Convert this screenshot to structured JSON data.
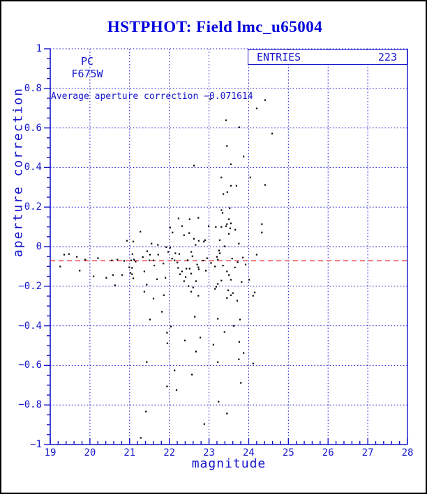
{
  "title": "HSTPHOT: Field lmc_u65004",
  "colors": {
    "title_blue": "#0000dd",
    "plot_blue": "#1414cc",
    "marker_black": "#000000",
    "average_line_red": "#ee2c2c",
    "outer_border_black": "#000000",
    "background": "#ffffff"
  },
  "annotations": {
    "camera": "PC",
    "filter": "F675W",
    "average_text": "Average aperture correction −0.071614"
  },
  "entries_box": {
    "label": "ENTRIES",
    "value": "223"
  },
  "chart_data": {
    "type": "scatter",
    "title": "HSTPHOT: Field lmc_u65004",
    "xlabel": "magnitude",
    "ylabel": "aperture correction",
    "xlim": [
      19,
      28
    ],
    "ylim": [
      -1,
      1
    ],
    "x_tick_labels": [
      "19",
      "20",
      "21",
      "22",
      "23",
      "24",
      "25",
      "26",
      "27",
      "28"
    ],
    "y_tick_labels": [
      "1",
      "0.8",
      "0.6",
      "0.4",
      "0.2",
      "0",
      "−0.2",
      "−0.4",
      "−0.6",
      "−0.8",
      "−1"
    ],
    "x_major_step": 1,
    "x_minor_step": 0.2,
    "y_major_step": 0.2,
    "y_minor_step": 0.05,
    "grid": "dotted blue lines at every major tick, full plot box",
    "legend_position": "none",
    "entries": 223,
    "average_aperture_correction": -0.071614,
    "average_line_y": -0.071614,
    "points": [
      [
        23.03,
        0.745
      ],
      [
        24.41,
        0.741
      ],
      [
        24.2,
        0.699
      ],
      [
        23.43,
        0.639
      ],
      [
        23.76,
        0.604
      ],
      [
        24.59,
        0.572
      ],
      [
        23.45,
        0.509
      ],
      [
        23.87,
        0.456
      ],
      [
        22.62,
        0.41
      ],
      [
        23.55,
        0.417
      ],
      [
        23.31,
        0.35
      ],
      [
        24.04,
        0.35
      ],
      [
        23.55,
        0.308
      ],
      [
        23.69,
        0.308
      ],
      [
        24.41,
        0.312
      ],
      [
        23.46,
        0.276
      ],
      [
        23.36,
        0.266
      ],
      [
        23.52,
        0.195
      ],
      [
        23.31,
        0.185
      ],
      [
        23.34,
        0.171
      ],
      [
        22.23,
        0.143
      ],
      [
        22.51,
        0.139
      ],
      [
        22.73,
        0.146
      ],
      [
        23.5,
        0.139
      ],
      [
        21.27,
        0.076
      ],
      [
        22.02,
        0.097
      ],
      [
        22.08,
        0.072
      ],
      [
        20.93,
        0.03
      ],
      [
        21.09,
        0.026
      ],
      [
        21.55,
        0.016
      ],
      [
        21.71,
        0.009
      ],
      [
        21.92,
        -0.002
      ],
      [
        22.02,
        -0.005
      ],
      [
        21.44,
        -0.023
      ],
      [
        21.51,
        -0.04
      ],
      [
        21.07,
        -0.037
      ],
      [
        22.15,
        -0.033
      ],
      [
        19.35,
        -0.04
      ],
      [
        19.47,
        -0.037
      ],
      [
        19.67,
        -0.051
      ],
      [
        19.88,
        -0.065
      ],
      [
        20.2,
        -0.058
      ],
      [
        20.55,
        -0.069
      ],
      [
        20.69,
        -0.065
      ],
      [
        20.86,
        -0.072
      ],
      [
        21.04,
        -0.069
      ],
      [
        21.11,
        -0.065
      ],
      [
        21.5,
        -0.069
      ],
      [
        21.6,
        -0.069
      ],
      [
        22.13,
        -0.069
      ],
      [
        19.25,
        -0.1
      ],
      [
        19.74,
        -0.121
      ],
      [
        20.99,
        -0.104
      ],
      [
        21.06,
        -0.107
      ],
      [
        21.02,
        -0.132
      ],
      [
        21.06,
        -0.139
      ],
      [
        21.37,
        -0.125
      ],
      [
        20.09,
        -0.15
      ],
      [
        20.41,
        -0.157
      ],
      [
        20.58,
        -0.143
      ],
      [
        20.81,
        -0.143
      ],
      [
        21.09,
        -0.16
      ],
      [
        21.69,
        -0.164
      ],
      [
        21.9,
        -0.157
      ],
      [
        21.97,
        -0.026
      ],
      [
        20.63,
        -0.195
      ],
      [
        21.43,
        -0.192
      ],
      [
        21.37,
        -0.227
      ],
      [
        21.6,
        -0.262
      ],
      [
        21.86,
        -0.245
      ],
      [
        21.81,
        -0.329
      ],
      [
        21.51,
        -0.368
      ],
      [
        22.04,
        -0.403
      ],
      [
        21.94,
        -0.435
      ],
      [
        22.32,
        0.104
      ],
      [
        22.5,
        0.069
      ],
      [
        22.37,
        0.058
      ],
      [
        22.62,
        0.04
      ],
      [
        22.74,
        0.03
      ],
      [
        22.66,
        0.009
      ],
      [
        22.25,
        -0.037
      ],
      [
        22.55,
        -0.026
      ],
      [
        22.22,
        -0.107
      ],
      [
        22.27,
        -0.139
      ],
      [
        22.43,
        -0.111
      ],
      [
        22.51,
        -0.111
      ],
      [
        22.73,
        -0.104
      ],
      [
        22.74,
        -0.114
      ],
      [
        22.55,
        -0.136
      ],
      [
        22.41,
        -0.153
      ],
      [
        22.37,
        -0.174
      ],
      [
        22.48,
        -0.199
      ],
      [
        22.67,
        -0.174
      ],
      [
        22.6,
        -0.206
      ],
      [
        22.55,
        -0.227
      ],
      [
        22.73,
        -0.248
      ],
      [
        22.64,
        -0.354
      ],
      [
        23.22,
        -0.364
      ],
      [
        23.78,
        -0.368
      ],
      [
        23.62,
        -0.4
      ],
      [
        23.39,
        -0.431
      ],
      [
        23.55,
        0.118
      ],
      [
        22.99,
        0.104
      ],
      [
        23.17,
        0.1
      ],
      [
        23.31,
        0.1
      ],
      [
        23.43,
        0.104
      ],
      [
        23.45,
        0.114
      ],
      [
        23.53,
        0.093
      ],
      [
        23.66,
        0.086
      ],
      [
        24.33,
        0.114
      ],
      [
        24.33,
        0.072
      ],
      [
        23.5,
        0.065
      ],
      [
        22.9,
        0.033
      ],
      [
        22.87,
        0.026
      ],
      [
        23.27,
        0.033
      ],
      [
        23.75,
        0.016
      ],
      [
        23.39,
        0.002
      ],
      [
        23.25,
        -0.019
      ],
      [
        23.27,
        -0.033
      ],
      [
        24.2,
        -0.04
      ],
      [
        23.2,
        -0.051
      ],
      [
        23.22,
        -0.065
      ],
      [
        23.15,
        -0.1
      ],
      [
        22.92,
        -0.121
      ],
      [
        23.45,
        -0.125
      ],
      [
        23.5,
        -0.143
      ],
      [
        23.55,
        -0.167
      ],
      [
        23.31,
        -0.171
      ],
      [
        23.22,
        -0.188
      ],
      [
        23.82,
        -0.178
      ],
      [
        24.01,
        -0.167
      ],
      [
        23.18,
        -0.202
      ],
      [
        23.15,
        -0.213
      ],
      [
        23.48,
        -0.22
      ],
      [
        23.6,
        -0.234
      ],
      [
        23.45,
        -0.259
      ],
      [
        23.55,
        -0.245
      ],
      [
        23.71,
        -0.273
      ],
      [
        24.15,
        -0.231
      ],
      [
        24.11,
        -0.248
      ],
      [
        21.95,
        -0.488
      ],
      [
        21.43,
        -0.583
      ],
      [
        22.13,
        -0.625
      ],
      [
        21.94,
        -0.706
      ],
      [
        21.41,
        -0.833
      ],
      [
        21.28,
        -0.966
      ],
      [
        22.39,
        -0.474
      ],
      [
        22.78,
        -0.459
      ],
      [
        23.11,
        -0.495
      ],
      [
        23.76,
        -0.481
      ],
      [
        22.67,
        -0.53
      ],
      [
        23.87,
        -0.537
      ],
      [
        23.75,
        -0.569
      ],
      [
        23.22,
        -0.583
      ],
      [
        24.11,
        -0.59
      ],
      [
        22.57,
        -0.646
      ],
      [
        22.18,
        -0.724
      ],
      [
        23.8,
        -0.688
      ],
      [
        23.24,
        -0.783
      ],
      [
        23.45,
        -0.843
      ],
      [
        22.88,
        -0.896
      ],
      [
        21.15,
        -0.075
      ],
      [
        21.33,
        -0.052
      ],
      [
        21.62,
        -0.095
      ],
      [
        21.72,
        -0.04
      ],
      [
        21.85,
        -0.085
      ],
      [
        22.07,
        -0.06
      ],
      [
        22.2,
        -0.08
      ],
      [
        22.32,
        -0.125
      ],
      [
        22.46,
        -0.068
      ],
      [
        22.58,
        -0.048
      ],
      [
        22.7,
        -0.09
      ],
      [
        22.85,
        -0.07
      ],
      [
        22.95,
        -0.058
      ],
      [
        23.05,
        -0.082
      ],
      [
        23.35,
        -0.095
      ],
      [
        23.58,
        -0.06
      ],
      [
        23.65,
        -0.105
      ],
      [
        23.72,
        -0.078
      ],
      [
        23.85,
        -0.055
      ],
      [
        23.92,
        -0.09
      ]
    ]
  }
}
